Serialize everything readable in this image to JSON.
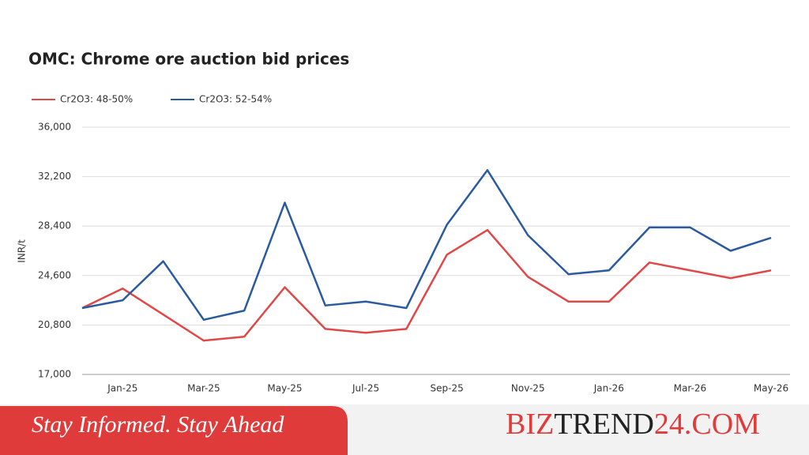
{
  "chart_data": {
    "type": "line",
    "title": "OMC: Chrome ore auction bid prices",
    "y_label": "INR/t",
    "categories": [
      null,
      "Jan-25",
      null,
      "Mar-25",
      null,
      "May-25",
      null,
      "Jul-25",
      null,
      "Sep-25",
      null,
      "Nov-25",
      null,
      "Jan-26",
      null,
      "Mar-26",
      null,
      "May-26"
    ],
    "series": [
      {
        "name": "Cr2O3: 48-50%",
        "color": "#e04848",
        "values": [
          22100,
          23600,
          21600,
          19600,
          19900,
          23700,
          20500,
          20200,
          20500,
          26200,
          28100,
          24500,
          22600,
          22600,
          25600,
          25000,
          24400,
          25000
        ]
      },
      {
        "name": "Cr2O3: 52-54%",
        "color": "#2a5aa0",
        "values": [
          22100,
          22700,
          25700,
          21200,
          21900,
          30200,
          22300,
          22600,
          22100,
          28500,
          32700,
          27700,
          24700,
          25000,
          28300,
          28300,
          26500,
          27500
        ]
      }
    ],
    "ylim": [
      17000,
      36000
    ],
    "yticks": [
      {
        "value": 17000,
        "label": "17,000"
      },
      {
        "value": 20800,
        "label": "20,800"
      },
      {
        "value": 24600,
        "label": "24,600"
      },
      {
        "value": 28400,
        "label": "28,400"
      },
      {
        "value": 32200,
        "label": "32,200"
      },
      {
        "value": 36000,
        "label": "36,000"
      }
    ],
    "grid": true,
    "legend": "top-left"
  },
  "footer": {
    "tagline": "Stay Informed. Stay Ahead",
    "brand": [
      "BIZ",
      "TREND",
      "24",
      ".COM"
    ]
  }
}
